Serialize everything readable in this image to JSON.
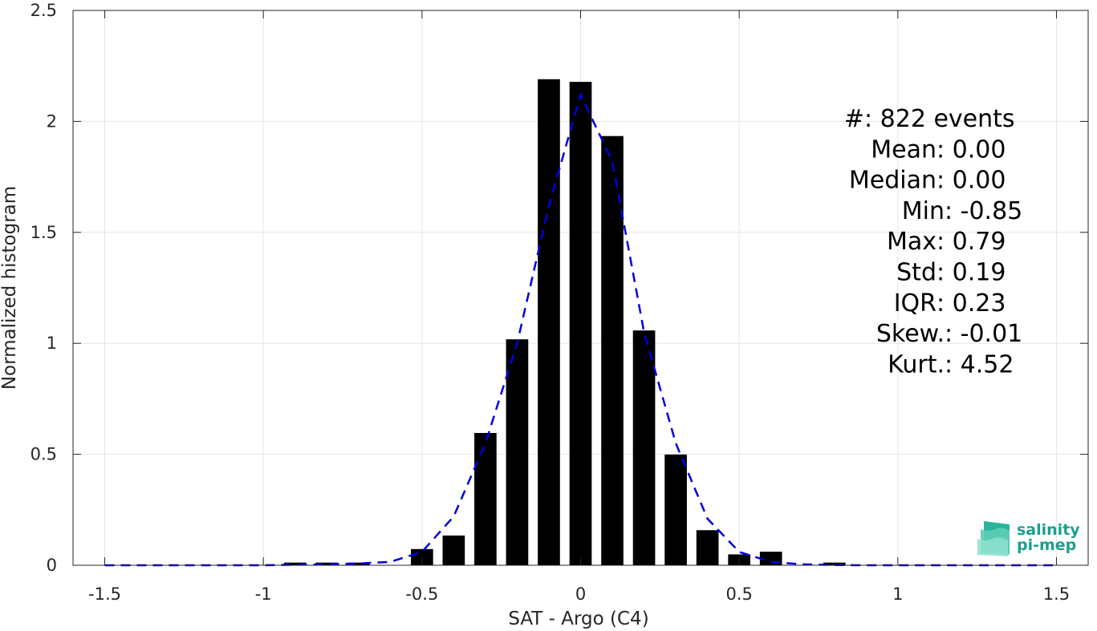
{
  "chart_data": {
    "type": "bar",
    "xlabel": "SAT - Argo (C4)",
    "ylabel": "Normalized histogram",
    "xlim": [
      -1.6,
      1.6
    ],
    "ylim": [
      0,
      2.5
    ],
    "xticks": [
      -1.5,
      -1,
      -0.5,
      0,
      0.5,
      1,
      1.5
    ],
    "xtick_labels": [
      "-1.5",
      "-1",
      "-0.5",
      "0",
      "0.5",
      "1",
      "1.5"
    ],
    "yticks": [
      0,
      0.5,
      1,
      1.5,
      2,
      2.5
    ],
    "ytick_labels": [
      "0",
      "0.5",
      "1",
      "1.5",
      "2",
      "2.5"
    ],
    "grid": true,
    "bar_width": 0.07,
    "bars": {
      "x": [
        -0.9,
        -0.8,
        -0.7,
        -0.5,
        -0.4,
        -0.3,
        -0.2,
        -0.1,
        0.0,
        0.1,
        0.2,
        0.3,
        0.4,
        0.5,
        0.6,
        0.8
      ],
      "values": [
        0.012,
        0.012,
        0.012,
        0.073,
        0.134,
        0.596,
        1.018,
        2.19,
        2.178,
        1.934,
        1.058,
        0.499,
        0.158,
        0.049,
        0.061,
        0.012
      ],
      "color": "#000000"
    },
    "fit_curve": {
      "style": "dashed",
      "color": "#0000e6",
      "x": [
        -1.5,
        -1.4,
        -1.3,
        -1.2,
        -1.1,
        -1.0,
        -0.9,
        -0.8,
        -0.7,
        -0.6,
        -0.5,
        -0.4,
        -0.3,
        -0.2,
        -0.1,
        0.0,
        0.1,
        0.2,
        0.3,
        0.4,
        0.5,
        0.6,
        0.7,
        0.8,
        0.9,
        1.0,
        1.1,
        1.2,
        1.3,
        1.4,
        1.5
      ],
      "y": [
        0,
        0,
        0,
        0,
        0,
        0,
        0.002,
        0.004,
        0.008,
        0.015,
        0.06,
        0.22,
        0.55,
        1.0,
        1.62,
        2.12,
        1.82,
        1.05,
        0.55,
        0.21,
        0.06,
        0.015,
        0.004,
        0.001,
        0,
        0,
        0,
        0,
        0,
        0,
        0
      ]
    }
  },
  "stats": [
    {
      "label": "#  ",
      "value": ": 822 events"
    },
    {
      "label": "Mean ",
      "value": ": 0.00"
    },
    {
      "label": "Median ",
      "value": ": 0.00"
    },
    {
      "label": "Min ",
      "value": ": -0.85"
    },
    {
      "label": "Max ",
      "value": ": 0.79"
    },
    {
      "label": "Std ",
      "value": ": 0.19"
    },
    {
      "label": "IQR ",
      "value": ": 0.23"
    },
    {
      "label": "Skew. ",
      "value": ": -0.01"
    },
    {
      "label": "Kurt. ",
      "value": ": 4.52"
    }
  ],
  "logo": {
    "line1": "salinity",
    "line2": "pi-mep",
    "color": "#1aa08c"
  }
}
